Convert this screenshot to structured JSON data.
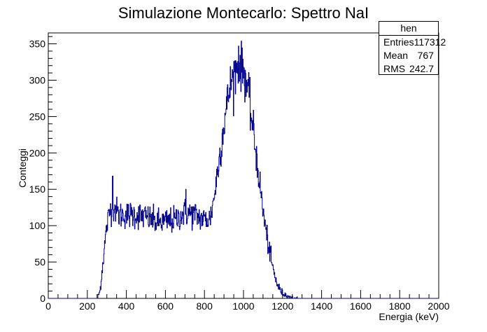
{
  "chart_data": {
    "type": "histogram",
    "title": "Simulazione Montecarlo: Spettro NaI",
    "xlabel": "Energia (keV)",
    "ylabel": "Conteggi",
    "xlim": [
      0,
      2000
    ],
    "ylim": [
      0,
      365
    ],
    "xticks": [
      0,
      200,
      400,
      600,
      800,
      1000,
      1200,
      1400,
      1600,
      1800,
      2000
    ],
    "yticks": [
      0,
      50,
      100,
      150,
      200,
      250,
      300,
      350
    ],
    "line_color": "#00008b",
    "grid": false,
    "stats_box": {
      "name": "hen",
      "entries_label": "Entries",
      "entries": "117312",
      "mean_label": "Mean",
      "mean": "767",
      "rms_label": "RMS",
      "rms": "242.7",
      "placement": "top-right"
    },
    "envelope": {
      "x": [
        0,
        250,
        265,
        280,
        300,
        320,
        340,
        360,
        400,
        450,
        500,
        550,
        600,
        650,
        700,
        750,
        800,
        830,
        850,
        870,
        900,
        930,
        960,
        980,
        1000,
        1020,
        1040,
        1060,
        1080,
        1100,
        1120,
        1140,
        1160,
        1180,
        1200,
        1230,
        1260,
        1300,
        2000
      ],
      "y": [
        0,
        0,
        10,
        50,
        100,
        125,
        125,
        115,
        115,
        115,
        112,
        105,
        105,
        108,
        118,
        115,
        108,
        110,
        140,
        180,
        240,
        290,
        315,
        320,
        315,
        290,
        250,
        210,
        165,
        120,
        85,
        55,
        30,
        15,
        7,
        3,
        1,
        0,
        0
      ]
    },
    "spikes": {
      "x": [
        330,
        705,
        975
      ],
      "y": [
        168,
        150,
        347
      ]
    }
  }
}
